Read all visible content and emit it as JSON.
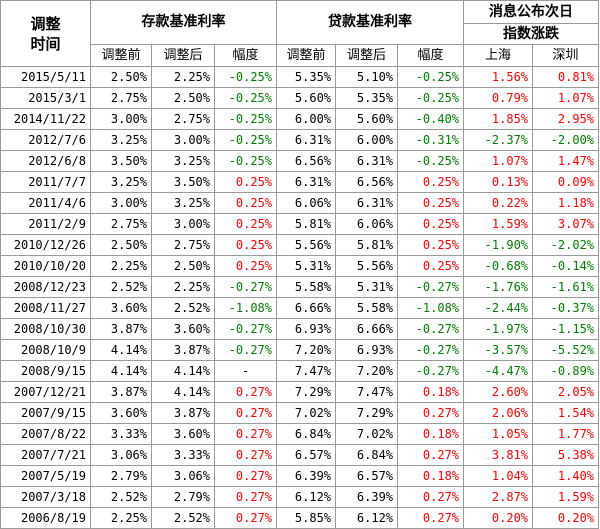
{
  "colors": {
    "positive": "#ff0000",
    "negative": "#008000",
    "border": "#9a9a9a"
  },
  "header": {
    "date_col": "调整时间",
    "deposit_group": "存款基准利率",
    "loan_group": "贷款基准利率",
    "market_group_line1": "消息公布次日",
    "market_group_line2": "指数涨跌",
    "before": "调整前",
    "after": "调整后",
    "change": "幅度",
    "shanghai": "上海",
    "shenzhen": "深圳"
  },
  "rows": [
    [
      "2015/5/11",
      "2.50%",
      "2.25%",
      "-0.25%",
      "5.35%",
      "5.10%",
      "-0.25%",
      "1.56%",
      "0.81%"
    ],
    [
      "2015/3/1",
      "2.75%",
      "2.50%",
      "-0.25%",
      "5.60%",
      "5.35%",
      "-0.25%",
      "0.79%",
      "1.07%"
    ],
    [
      "2014/11/22",
      "3.00%",
      "2.75%",
      "-0.25%",
      "6.00%",
      "5.60%",
      "-0.40%",
      "1.85%",
      "2.95%"
    ],
    [
      "2012/7/6",
      "3.25%",
      "3.00%",
      "-0.25%",
      "6.31%",
      "6.00%",
      "-0.31%",
      "-2.37%",
      "-2.00%"
    ],
    [
      "2012/6/8",
      "3.50%",
      "3.25%",
      "-0.25%",
      "6.56%",
      "6.31%",
      "-0.25%",
      "1.07%",
      "1.47%"
    ],
    [
      "2011/7/7",
      "3.25%",
      "3.50%",
      "0.25%",
      "6.31%",
      "6.56%",
      "0.25%",
      "0.13%",
      "0.09%"
    ],
    [
      "2011/4/6",
      "3.00%",
      "3.25%",
      "0.25%",
      "6.06%",
      "6.31%",
      "0.25%",
      "0.22%",
      "1.18%"
    ],
    [
      "2011/2/9",
      "2.75%",
      "3.00%",
      "0.25%",
      "5.81%",
      "6.06%",
      "0.25%",
      "1.59%",
      "3.07%"
    ],
    [
      "2010/12/26",
      "2.50%",
      "2.75%",
      "0.25%",
      "5.56%",
      "5.81%",
      "0.25%",
      "-1.90%",
      "-2.02%"
    ],
    [
      "2010/10/20",
      "2.25%",
      "2.50%",
      "0.25%",
      "5.31%",
      "5.56%",
      "0.25%",
      "-0.68%",
      "-0.14%"
    ],
    [
      "2008/12/23",
      "2.52%",
      "2.25%",
      "-0.27%",
      "5.58%",
      "5.31%",
      "-0.27%",
      "-1.76%",
      "-1.61%"
    ],
    [
      "2008/11/27",
      "3.60%",
      "2.52%",
      "-1.08%",
      "6.66%",
      "5.58%",
      "-1.08%",
      "-2.44%",
      "-0.37%"
    ],
    [
      "2008/10/30",
      "3.87%",
      "3.60%",
      "-0.27%",
      "6.93%",
      "6.66%",
      "-0.27%",
      "-1.97%",
      "-1.15%"
    ],
    [
      "2008/10/9",
      "4.14%",
      "3.87%",
      "-0.27%",
      "7.20%",
      "6.93%",
      "-0.27%",
      "-3.57%",
      "-5.52%"
    ],
    [
      "2008/9/15",
      "4.14%",
      "4.14%",
      "-",
      "7.47%",
      "7.20%",
      "-0.27%",
      "-4.47%",
      "-0.89%"
    ],
    [
      "2007/12/21",
      "3.87%",
      "4.14%",
      "0.27%",
      "7.29%",
      "7.47%",
      "0.18%",
      "2.60%",
      "2.05%"
    ],
    [
      "2007/9/15",
      "3.60%",
      "3.87%",
      "0.27%",
      "7.02%",
      "7.29%",
      "0.27%",
      "2.06%",
      "1.54%"
    ],
    [
      "2007/8/22",
      "3.33%",
      "3.60%",
      "0.27%",
      "6.84%",
      "7.02%",
      "0.18%",
      "1.05%",
      "1.77%"
    ],
    [
      "2007/7/21",
      "3.06%",
      "3.33%",
      "0.27%",
      "6.57%",
      "6.84%",
      "0.27%",
      "3.81%",
      "5.38%"
    ],
    [
      "2007/5/19",
      "2.79%",
      "3.06%",
      "0.27%",
      "6.39%",
      "6.57%",
      "0.18%",
      "1.04%",
      "1.40%"
    ],
    [
      "2007/3/18",
      "2.52%",
      "2.79%",
      "0.27%",
      "6.12%",
      "6.39%",
      "0.27%",
      "2.87%",
      "1.59%"
    ],
    [
      "2006/8/19",
      "2.25%",
      "2.52%",
      "0.27%",
      "5.85%",
      "6.12%",
      "0.27%",
      "0.20%",
      "0.20%"
    ]
  ]
}
